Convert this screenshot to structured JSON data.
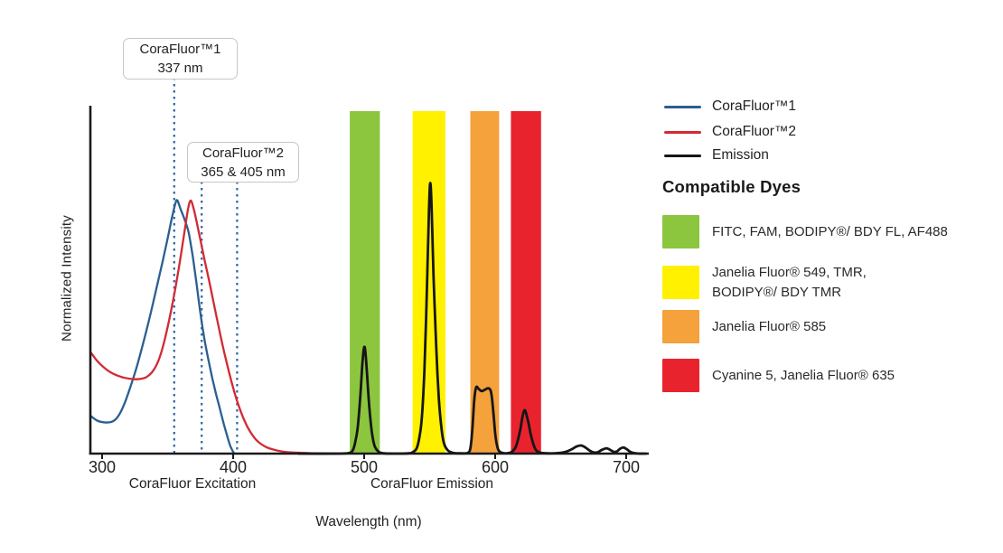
{
  "chart_data": {
    "type": "line",
    "title": "",
    "xlabel": "Wavelength (nm)",
    "ylabel": "Normalized Intensity",
    "x_ticks": [
      300,
      400,
      500,
      600,
      700
    ],
    "x_range_nm": [
      291,
      717
    ],
    "y_range": [
      0,
      1.38
    ],
    "grid": false,
    "axis_color": "#1a1a1a",
    "axis_group_labels": [
      {
        "text": "CoraFluor Excitation"
      },
      {
        "text": "CoraFluor Emission"
      }
    ],
    "callouts": [
      {
        "line1": "CoraFluor™1",
        "line2": "337 nm",
        "marks_nm": [
          337
        ]
      },
      {
        "line1": "CoraFluor™2",
        "line2": "365 & 405 nm",
        "marks_nm": [
          365,
          405
        ]
      }
    ],
    "dashed_marker_lines": [
      {
        "label_nm": 337,
        "draw_nm": 355,
        "callout": "CoraFluor™1",
        "color": "#2f6ba8"
      },
      {
        "label_nm": 365,
        "draw_nm": 376,
        "callout": "CoraFluor™2",
        "color": "#2f6ba8"
      },
      {
        "label_nm": 405,
        "draw_nm": 403,
        "callout": "CoraFluor™2",
        "color": "#2f6ba8"
      }
    ],
    "bands": [
      {
        "dyes": "FITC, FAM, BODIPY®/ BDY FL, AF488",
        "color": "#8cc63f",
        "from_nm": 489,
        "to_nm": 512
      },
      {
        "dyes": "Janelia Fluor® 549, TMR, BODIPY®/ BDY TMR",
        "color": "#fff100",
        "from_nm": 537,
        "to_nm": 562
      },
      {
        "dyes": "Janelia Fluor® 585",
        "color": "#f5a13c",
        "from_nm": 581,
        "to_nm": 603
      },
      {
        "dyes": "Cyanine 5, Janelia Fluor® 635",
        "color": "#e9232e",
        "from_nm": 612,
        "to_nm": 635
      }
    ],
    "emission_peaks_nm": [
      500,
      550,
      590,
      623,
      665,
      685,
      698
    ],
    "series": [
      {
        "name": "CoraFluor™1",
        "role": "excitation",
        "color": "#2b5f90",
        "stroke_width": 2.3,
        "points": [
          [
            291,
            0.15
          ],
          [
            296,
            0.131
          ],
          [
            301,
            0.124
          ],
          [
            306,
            0.124
          ],
          [
            310,
            0.134
          ],
          [
            314,
            0.163
          ],
          [
            318,
            0.21
          ],
          [
            322,
            0.27
          ],
          [
            326,
            0.335
          ],
          [
            330,
            0.41
          ],
          [
            334,
            0.49
          ],
          [
            338,
            0.575
          ],
          [
            342,
            0.665
          ],
          [
            346,
            0.755
          ],
          [
            350,
            0.85
          ],
          [
            353,
            0.925
          ],
          [
            356,
            0.99
          ],
          [
            357.5,
            1.0
          ],
          [
            360,
            0.965
          ],
          [
            363,
            0.925
          ],
          [
            366,
            0.875
          ],
          [
            369,
            0.785
          ],
          [
            372,
            0.675
          ],
          [
            375,
            0.555
          ],
          [
            378,
            0.455
          ],
          [
            381,
            0.375
          ],
          [
            384,
            0.3
          ],
          [
            387,
            0.235
          ],
          [
            390,
            0.175
          ],
          [
            393,
            0.115
          ],
          [
            396,
            0.06
          ],
          [
            398,
            0.028
          ],
          [
            400,
            0.007
          ],
          [
            401,
            0
          ]
        ]
      },
      {
        "name": "CoraFluor™2",
        "role": "excitation",
        "color": "#d22a34",
        "stroke_width": 2.3,
        "points": [
          [
            291,
            0.402
          ],
          [
            296,
            0.368
          ],
          [
            301,
            0.342
          ],
          [
            306,
            0.323
          ],
          [
            311,
            0.31
          ],
          [
            316,
            0.301
          ],
          [
            321,
            0.296
          ],
          [
            326,
            0.294
          ],
          [
            330,
            0.296
          ],
          [
            334,
            0.303
          ],
          [
            338,
            0.321
          ],
          [
            342,
            0.355
          ],
          [
            346,
            0.415
          ],
          [
            350,
            0.5
          ],
          [
            354,
            0.6
          ],
          [
            357,
            0.685
          ],
          [
            360,
            0.78
          ],
          [
            363,
            0.88
          ],
          [
            365.5,
            0.965
          ],
          [
            367.5,
            1.0
          ],
          [
            369.5,
            0.975
          ],
          [
            372,
            0.92
          ],
          [
            375,
            0.845
          ],
          [
            378,
            0.77
          ],
          [
            381,
            0.7
          ],
          [
            384,
            0.625
          ],
          [
            387,
            0.55
          ],
          [
            390,
            0.475
          ],
          [
            393,
            0.405
          ],
          [
            396,
            0.34
          ],
          [
            399,
            0.28
          ],
          [
            402,
            0.225
          ],
          [
            405,
            0.178
          ],
          [
            408,
            0.138
          ],
          [
            411,
            0.105
          ],
          [
            414,
            0.079
          ],
          [
            417,
            0.058
          ],
          [
            420,
            0.043
          ],
          [
            424,
            0.029
          ],
          [
            428,
            0.02
          ],
          [
            433,
            0.013
          ],
          [
            438,
            0.008
          ],
          [
            444,
            0.005
          ],
          [
            452,
            0.003
          ],
          [
            462,
            0.001
          ],
          [
            472,
            0
          ]
        ]
      },
      {
        "name": "Emission",
        "role": "emission",
        "color": "#161616",
        "stroke_width": 2.8,
        "points": [
          [
            450,
            0
          ],
          [
            480,
            0
          ],
          [
            488,
            0.002
          ],
          [
            491,
            0.01
          ],
          [
            493,
            0.04
          ],
          [
            495,
            0.1
          ],
          [
            497,
            0.22
          ],
          [
            499,
            0.38
          ],
          [
            500.5,
            0.42
          ],
          [
            502,
            0.33
          ],
          [
            504,
            0.18
          ],
          [
            506,
            0.08
          ],
          [
            508,
            0.03
          ],
          [
            511,
            0.008
          ],
          [
            515,
            0.001
          ],
          [
            525,
            0
          ],
          [
            534,
            0.001
          ],
          [
            537,
            0.005
          ],
          [
            540,
            0.02
          ],
          [
            542,
            0.06
          ],
          [
            544,
            0.14
          ],
          [
            546,
            0.33
          ],
          [
            548,
            0.67
          ],
          [
            549.5,
            0.97
          ],
          [
            550.5,
            1.07
          ],
          [
            551.5,
            0.97
          ],
          [
            553,
            0.7
          ],
          [
            555,
            0.42
          ],
          [
            557,
            0.22
          ],
          [
            559,
            0.1
          ],
          [
            561,
            0.04
          ],
          [
            564,
            0.012
          ],
          [
            568,
            0.003
          ],
          [
            574,
            0.001
          ],
          [
            579,
            0.003
          ],
          [
            581,
            0.02
          ],
          [
            582.5,
            0.09
          ],
          [
            584,
            0.21
          ],
          [
            585.5,
            0.262
          ],
          [
            587.5,
            0.255
          ],
          [
            589.5,
            0.247
          ],
          [
            592,
            0.252
          ],
          [
            595,
            0.258
          ],
          [
            597,
            0.24
          ],
          [
            598.5,
            0.17
          ],
          [
            600,
            0.08
          ],
          [
            601.5,
            0.03
          ],
          [
            603,
            0.01
          ],
          [
            606,
            0.002
          ],
          [
            610,
            0.002
          ],
          [
            613,
            0.008
          ],
          [
            616,
            0.03
          ],
          [
            619,
            0.09
          ],
          [
            621,
            0.15
          ],
          [
            622.8,
            0.171
          ],
          [
            625,
            0.13
          ],
          [
            627,
            0.08
          ],
          [
            629,
            0.04
          ],
          [
            631,
            0.015
          ],
          [
            634,
            0.004
          ],
          [
            640,
            0.001
          ],
          [
            648,
            0.002
          ],
          [
            653,
            0.006
          ],
          [
            658,
            0.016
          ],
          [
            662,
            0.028
          ],
          [
            665.5,
            0.032
          ],
          [
            669,
            0.024
          ],
          [
            672,
            0.012
          ],
          [
            675,
            0.005
          ],
          [
            678,
            0.005
          ],
          [
            681.5,
            0.015
          ],
          [
            685,
            0.021
          ],
          [
            688,
            0.014
          ],
          [
            690.5,
            0.007
          ],
          [
            693,
            0.009
          ],
          [
            695.5,
            0.02
          ],
          [
            698,
            0.024
          ],
          [
            700.5,
            0.017
          ],
          [
            703,
            0.007
          ],
          [
            706,
            0.002
          ],
          [
            710,
            0
          ],
          [
            715,
            0
          ]
        ]
      }
    ]
  },
  "legend": {
    "entries": [
      {
        "label": "CoraFluor™1",
        "color": "#2b5f90"
      },
      {
        "label": "CoraFluor™2",
        "color": "#d22a34"
      },
      {
        "label": "Emission",
        "color": "#161616"
      }
    ]
  },
  "compatible_dyes": {
    "heading": "Compatible Dyes",
    "items": [
      {
        "color": "#8cc63f",
        "lines": [
          "FITC, FAM, BODIPY®/ BDY FL, AF488"
        ]
      },
      {
        "color": "#fff100",
        "lines": [
          "Janelia Fluor® 549, TMR,",
          "BODIPY®/ BDY TMR"
        ]
      },
      {
        "color": "#f5a13c",
        "lines": [
          "Janelia Fluor® 585"
        ]
      },
      {
        "color": "#e9232e",
        "lines": [
          "Cyanine 5, Janelia Fluor® 635"
        ]
      }
    ]
  }
}
